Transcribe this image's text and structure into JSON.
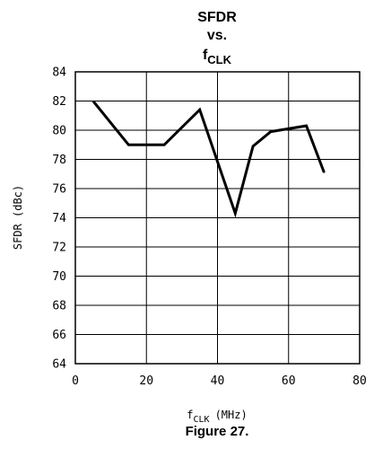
{
  "chart_data": {
    "type": "line",
    "title_lines": [
      "SFDR",
      "vs."
    ],
    "title_sym": "f",
    "title_sym_sub": "CLK",
    "xlabel_sym": "f",
    "xlabel_sub": "CLK",
    "xlabel_unit": "(MHz)",
    "ylabel": "SFDR (dBc)",
    "xlim": [
      0,
      80
    ],
    "ylim": [
      64,
      84
    ],
    "xticks": [
      0,
      20,
      40,
      60,
      80
    ],
    "yticks": [
      64,
      66,
      68,
      70,
      72,
      74,
      76,
      78,
      80,
      82,
      84
    ],
    "grid": true,
    "series": [
      {
        "x": [
          5,
          15,
          25,
          35,
          45,
          50,
          55,
          65,
          70
        ],
        "y": [
          82.0,
          79.0,
          79.0,
          81.4,
          74.3,
          78.9,
          79.9,
          80.3,
          77.1
        ]
      }
    ]
  },
  "caption": "Figure 27."
}
